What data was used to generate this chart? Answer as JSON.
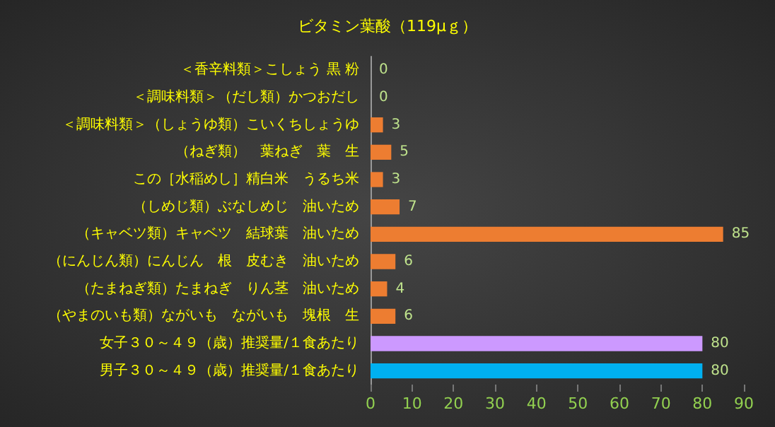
{
  "chart_data": {
    "type": "bar",
    "orientation": "horizontal",
    "title": "ビタミン葉酸（119μｇ）",
    "categories": [
      "＜香辛料類＞こしょう 黒 粉",
      "＜調味料類＞（だし類）かつおだし",
      "＜調味料類＞（しょうゆ類）こいくちしょうゆ",
      "（ねぎ類）　葉ねぎ　葉　生",
      "この［水稲めし］精白米　うるち米",
      "（しめじ類）ぶなしめじ　油いため",
      "（キャベツ類）キャベツ　結球葉　油いため",
      "（にんじん類）にんじん　根　皮むき　油いため",
      "（たまねぎ類）たまねぎ　りん茎　油いため",
      "（やまのいも類）ながいも　ながいも　塊根　生",
      "女子３０～４９（歳）推奨量/１食あたり",
      "男子３０～４９（歳）推奨量/１食あたり"
    ],
    "values": [
      0,
      0,
      3,
      5,
      3,
      7,
      85,
      6,
      4,
      6,
      80,
      80
    ],
    "colors": [
      "#ed7d31",
      "#ed7d31",
      "#ed7d31",
      "#ed7d31",
      "#ed7d31",
      "#ed7d31",
      "#ed7d31",
      "#ed7d31",
      "#ed7d31",
      "#ed7d31",
      "#cc99ff",
      "#00b0f0"
    ],
    "xlim": [
      0,
      90
    ],
    "xticks": [
      0,
      10,
      20,
      30,
      40,
      50,
      60,
      70,
      80,
      90
    ],
    "data_labels": true
  }
}
